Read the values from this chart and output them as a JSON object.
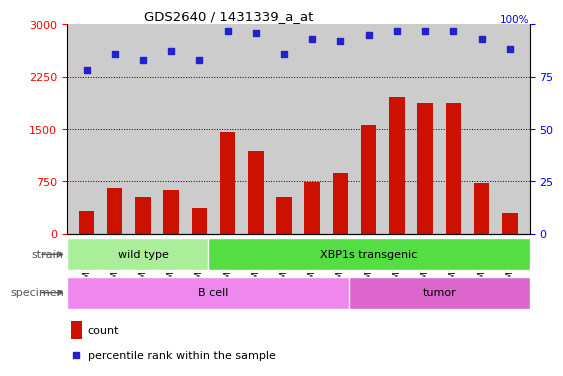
{
  "title": "GDS2640 / 1431339_a_at",
  "samples": [
    "GSM160730",
    "GSM160731",
    "GSM160739",
    "GSM160860",
    "GSM160861",
    "GSM160864",
    "GSM160865",
    "GSM160866",
    "GSM160867",
    "GSM160868",
    "GSM160869",
    "GSM160880",
    "GSM160881",
    "GSM160882",
    "GSM160883",
    "GSM160884"
  ],
  "counts": [
    320,
    650,
    530,
    620,
    370,
    1460,
    1180,
    530,
    740,
    870,
    1560,
    1960,
    1870,
    1870,
    720,
    290
  ],
  "percentiles": [
    78,
    86,
    83,
    87,
    83,
    97,
    96,
    86,
    93,
    92,
    95,
    97,
    97,
    97,
    93,
    88
  ],
  "ylim_left": [
    0,
    3000
  ],
  "ylim_right": [
    0,
    100
  ],
  "yticks_left": [
    0,
    750,
    1500,
    2250,
    3000
  ],
  "yticks_right": [
    0,
    25,
    50,
    75,
    100
  ],
  "bar_color": "#cc1100",
  "dot_color": "#2222cc",
  "strain_groups": [
    {
      "label": "wild type",
      "start": 0,
      "end": 5,
      "color": "#aaee99"
    },
    {
      "label": "XBP1s transgenic",
      "start": 5,
      "end": 16,
      "color": "#55dd44"
    }
  ],
  "specimen_groups": [
    {
      "label": "B cell",
      "start": 0,
      "end": 10,
      "color": "#ee88ee"
    },
    {
      "label": "tumor",
      "start": 10,
      "end": 16,
      "color": "#dd66cc"
    }
  ],
  "legend_count_label": "count",
  "legend_pct_label": "percentile rank within the sample",
  "strain_label": "strain",
  "specimen_label": "specimen",
  "bar_width": 0.55,
  "chart_bg": "#cccccc",
  "fig_bg": "#ffffff"
}
